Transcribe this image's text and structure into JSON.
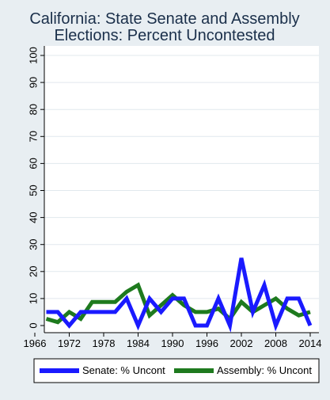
{
  "chart_data": {
    "type": "line",
    "title": "California: State Senate and Assembly\nElections: Percent Uncontested",
    "title_lines": [
      "California: State Senate and Assembly",
      "Elections: Percent Uncontested"
    ],
    "xlabel": "",
    "ylabel": "",
    "xlim": [
      1966,
      2014
    ],
    "ylim": [
      0,
      100
    ],
    "x_ticks": [
      1966,
      1972,
      1978,
      1984,
      1990,
      1996,
      2002,
      2008,
      2014
    ],
    "y_ticks": [
      0,
      10,
      20,
      30,
      40,
      50,
      60,
      70,
      80,
      90,
      100
    ],
    "grid": "horizontal",
    "legend_position": "bottom",
    "colors": {
      "background": "#e8eef2",
      "plot_background": "#ffffff",
      "senate": "#1a1aff",
      "assembly": "#1e7a1e",
      "title": "#1a2f4a",
      "grid": "#e1e8ed"
    },
    "series": [
      {
        "name": "Senate: % Uncont",
        "color": "#1a1aff",
        "x": [
          1968,
          1970,
          1972,
          1974,
          1976,
          1978,
          1980,
          1982,
          1984,
          1986,
          1988,
          1990,
          1992,
          1994,
          1996,
          1998,
          2000,
          2002,
          2004,
          2006,
          2008,
          2010,
          2012,
          2014
        ],
        "y": [
          5,
          5,
          0,
          5,
          5,
          5,
          5,
          10,
          0,
          10,
          5,
          10,
          10,
          0,
          0,
          10,
          0,
          25,
          5,
          15,
          0,
          10,
          10,
          0
        ]
      },
      {
        "name": "Assembly: % Uncont",
        "color": "#1e7a1e",
        "x": [
          1968,
          1970,
          1972,
          1974,
          1976,
          1978,
          1980,
          1982,
          1984,
          1986,
          1988,
          1990,
          1992,
          1994,
          1996,
          1998,
          2000,
          2002,
          2004,
          2006,
          2008,
          2010,
          2012,
          2014
        ],
        "y": [
          2.5,
          1.25,
          5,
          2.5,
          8.75,
          8.75,
          8.75,
          12.5,
          15,
          3.75,
          7.5,
          11.25,
          7.5,
          5,
          5,
          6.25,
          2.5,
          8.75,
          5,
          7.5,
          10,
          6.25,
          3.75,
          5
        ]
      }
    ]
  }
}
